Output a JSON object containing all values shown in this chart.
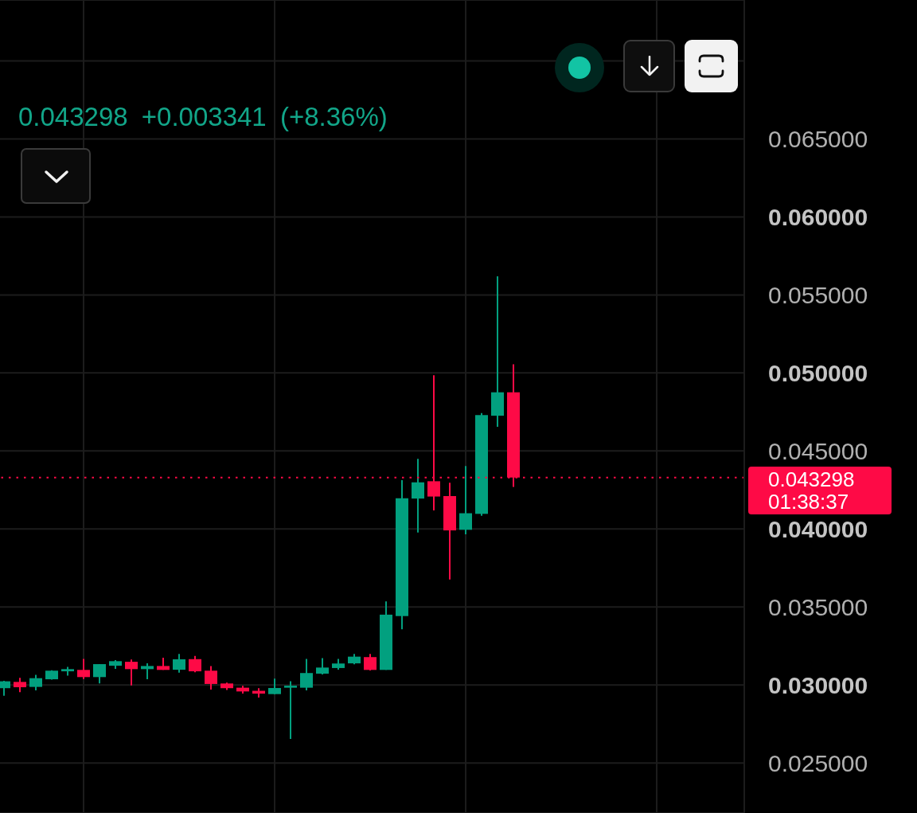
{
  "chart_data": {
    "type": "candlestick",
    "subtitle": "0.043298 +0.003341 (+8.36%)",
    "categories": [
      null,
      null,
      null,
      null,
      null,
      null,
      null,
      null,
      null,
      null,
      null,
      null,
      null,
      null,
      null,
      null,
      null,
      null,
      null,
      null,
      null,
      null,
      null,
      null,
      null,
      null,
      null,
      null,
      null,
      null,
      null,
      null,
      null,
      null,
      null,
      null,
      null,
      null,
      null,
      null,
      null,
      null,
      null,
      null,
      null,
      null,
      null
    ],
    "ohlc": [
      [
        0.0298,
        0.03027,
        0.02932,
        0.03024
      ],
      [
        0.0302,
        0.03046,
        0.02954,
        0.02986
      ],
      [
        0.02988,
        0.03065,
        0.02966,
        0.03044
      ],
      [
        0.03037,
        0.03095,
        0.03035,
        0.03092
      ],
      [
        0.03088,
        0.03117,
        0.0306,
        0.03102
      ],
      [
        0.03097,
        0.03167,
        0.03039,
        0.03051
      ],
      [
        0.03051,
        0.03134,
        0.0301,
        0.03134
      ],
      [
        0.03124,
        0.0316,
        0.03104,
        0.03153
      ],
      [
        0.03149,
        0.03163,
        0.02998,
        0.03102
      ],
      [
        0.03102,
        0.03139,
        0.03037,
        0.03122
      ],
      [
        0.03122,
        0.03175,
        0.03097,
        0.03097
      ],
      [
        0.03098,
        0.03199,
        0.0308,
        0.03165
      ],
      [
        0.03166,
        0.03187,
        0.03082,
        0.03088
      ],
      [
        0.03092,
        0.03122,
        0.02971,
        0.03007
      ],
      [
        0.0301,
        0.03015,
        0.02969,
        0.0298
      ],
      [
        0.02983,
        0.02995,
        0.02945,
        0.02959
      ],
      [
        0.02963,
        0.0298,
        0.0292,
        0.02945
      ],
      [
        0.02942,
        0.03041,
        0.02942,
        0.02981
      ],
      [
        0.02983,
        0.03024,
        0.02655,
        0.02996
      ],
      [
        0.02983,
        0.03167,
        0.02966,
        0.03077
      ],
      [
        0.03073,
        0.03173,
        0.03068,
        0.03112
      ],
      [
        0.03109,
        0.03167,
        0.03098,
        0.03138
      ],
      [
        0.03139,
        0.03199,
        0.03133,
        0.03182
      ],
      [
        0.03179,
        0.03199,
        0.03093,
        0.03097
      ],
      [
        0.03097,
        0.03536,
        0.03097,
        0.03451
      ],
      [
        0.03442,
        0.04313,
        0.03357,
        0.04197
      ],
      [
        0.04195,
        0.04449,
        0.03978,
        0.04299
      ],
      [
        0.04306,
        0.04985,
        0.04119,
        0.04208
      ],
      [
        0.04211,
        0.04296,
        0.03677,
        0.03991
      ],
      [
        0.03995,
        0.04403,
        0.03966,
        0.04101
      ],
      [
        0.04097,
        0.04743,
        0.04085,
        0.0473
      ],
      [
        0.04726,
        0.05619,
        0.04655,
        0.04876
      ],
      [
        0.04876,
        0.05056,
        0.0427,
        0.043298
      ],
      null,
      null,
      null,
      null,
      null,
      null,
      null,
      null,
      null,
      null,
      null,
      null,
      null,
      null
    ],
    "colors": [
      "#02a07f",
      "#fe0a46",
      "#02a07f",
      "#02a07f",
      "#02a07f",
      "#fe0a46",
      "#02a07f",
      "#02a07f",
      "#fe0a46",
      "#02a07f",
      "#fe0a46",
      "#02a07f",
      "#fe0a46",
      "#fe0a46",
      "#fe0a46",
      "#fe0a46",
      "#fe0a46",
      "#02a07f",
      "#02a07f",
      "#02a07f",
      "#02a07f",
      "#02a07f",
      "#02a07f",
      "#fe0a46",
      "#02a07f",
      "#02a07f",
      "#02a07f",
      "#fe0a46",
      "#fe0a46",
      "#02a07f",
      "#02a07f",
      "#02a07f",
      "#fe0a46",
      null,
      null,
      null,
      null,
      null,
      null,
      null,
      null,
      null,
      null,
      null,
      null,
      null,
      null
    ],
    "ylim": [
      0.0218,
      0.0739
    ],
    "yticks": [
      {
        "value": 0.025,
        "label": "0.025000"
      },
      {
        "value": 0.03,
        "label": "0.030000"
      },
      {
        "value": 0.035,
        "label": "0.035000"
      },
      {
        "value": 0.04,
        "label": "0.040000"
      },
      {
        "value": 0.045,
        "label": "0.045000"
      },
      {
        "value": 0.05,
        "label": "0.050000"
      },
      {
        "value": 0.055,
        "label": "0.055000"
      },
      {
        "value": 0.06,
        "label": "0.060000"
      },
      {
        "value": 0.065,
        "label": "0.065000"
      },
      {
        "value": 0.07,
        "label": null
      }
    ],
    "grid": true,
    "tick_labels": "y",
    "ref_lines": [
      {
        "axis": "y",
        "value": 0.043298,
        "label": "0.043298 01:38:37",
        "color": "#fe0a46",
        "line_style": "dotted"
      }
    ]
  }
}
